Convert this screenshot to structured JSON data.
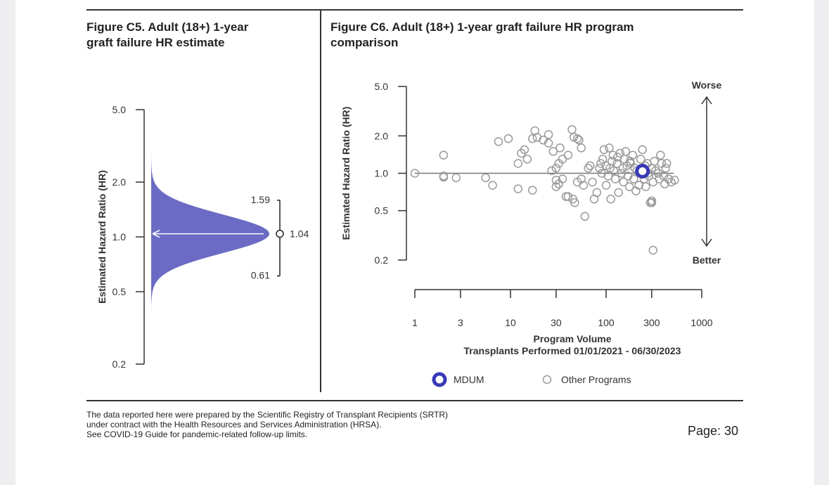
{
  "figure_c5": {
    "title_line1": "Figure C5. Adult (18+) 1-year",
    "title_line2": "graft failure HR estimate"
  },
  "figure_c6": {
    "title_line1": "Figure C6. Adult (18+) 1-year graft failure HR program",
    "title_line2": "comparison"
  },
  "footer": {
    "line1": "The data reported here were prepared by the Scientific Registry of Transplant Recipients (SRTR)",
    "line2": "under contract with the Health Resources and Services Administration (HRSA).",
    "line3": "See COVID-19 Guide for pandemic-related follow-up limits.",
    "page": "Page: 30"
  },
  "colors": {
    "accent": "#6b6bc5",
    "mdum": "#3838b8",
    "other": "#9a9a9a",
    "axis": "#333333"
  },
  "chart_data": [
    {
      "type": "area",
      "title": "Figure C5. Adult (18+) 1-year graft failure HR estimate",
      "ylabel": "Estimated Hazard Ratio (HR)",
      "yscale": "log",
      "ylim": [
        0.2,
        5.0
      ],
      "yticks": [
        5.0,
        2.0,
        1.0,
        0.5,
        0.2
      ],
      "ytick_labels": [
        "5.0",
        "2.0",
        "1.0",
        "0.5",
        "0.2"
      ],
      "estimate": 1.04,
      "ci_lower": 0.61,
      "ci_upper": 1.59,
      "estimate_label": "1.04",
      "ci_lower_label": "0.61",
      "ci_upper_label": "1.59",
      "reference_line": 1.0
    },
    {
      "type": "scatter",
      "title": "Figure C6. Adult (18+) 1-year graft failure HR program comparison",
      "ylabel": "Estimated Hazard Ratio (HR)",
      "xlabel_line1": "Program Volume",
      "xlabel_line2": "Transplants Performed 01/01/2021 - 06/30/2023",
      "xscale": "log",
      "yscale": "log",
      "xlim": [
        1,
        1000
      ],
      "ylim": [
        0.2,
        5.0
      ],
      "xticks": [
        1,
        3,
        10,
        30,
        100,
        300,
        1000
      ],
      "xtick_labels": [
        "1",
        "3",
        "10",
        "30",
        "100",
        "300",
        "1000"
      ],
      "yticks": [
        5.0,
        2.0,
        1.0,
        0.5,
        0.2
      ],
      "ytick_labels": [
        "5.0",
        "2.0",
        "1.0",
        "0.5",
        "0.2"
      ],
      "reference_line": 1.0,
      "worse_label": "Worse",
      "better_label": "Better",
      "legend": [
        {
          "name": "MDUM",
          "style": "filled-ring"
        },
        {
          "name": "Other Programs",
          "style": "open-circle"
        }
      ],
      "mdum_point": {
        "x": 240,
        "y": 1.04
      },
      "other_programs": [
        [
          1,
          1.0
        ],
        [
          2,
          1.4
        ],
        [
          2,
          0.95
        ],
        [
          2,
          0.93
        ],
        [
          2.7,
          0.92
        ],
        [
          5.5,
          0.92
        ],
        [
          6.5,
          0.8
        ],
        [
          7.5,
          1.8
        ],
        [
          9.5,
          1.9
        ],
        [
          12,
          1.2
        ],
        [
          13,
          1.45
        ],
        [
          14,
          1.55
        ],
        [
          15,
          1.3
        ],
        [
          18,
          2.2
        ],
        [
          17,
          1.9
        ],
        [
          19,
          1.95
        ],
        [
          22,
          1.85
        ],
        [
          25,
          2.05
        ],
        [
          25,
          1.75
        ],
        [
          28,
          1.5
        ],
        [
          33,
          1.6
        ],
        [
          30,
          1.1
        ],
        [
          32,
          1.2
        ],
        [
          35,
          1.3
        ],
        [
          40,
          1.4
        ],
        [
          44,
          2.25
        ],
        [
          46,
          1.95
        ],
        [
          50,
          1.9
        ],
        [
          52,
          1.85
        ],
        [
          55,
          1.6
        ],
        [
          12,
          0.75
        ],
        [
          17,
          0.73
        ],
        [
          27,
          1.05
        ],
        [
          30,
          0.88
        ],
        [
          30,
          0.78
        ],
        [
          32,
          0.82
        ],
        [
          35,
          0.9
        ],
        [
          38,
          0.65
        ],
        [
          40,
          0.65
        ],
        [
          45,
          0.62
        ],
        [
          47,
          0.58
        ],
        [
          50,
          0.85
        ],
        [
          55,
          0.9
        ],
        [
          58,
          0.8
        ],
        [
          60,
          0.45
        ],
        [
          65,
          1.1
        ],
        [
          68,
          1.15
        ],
        [
          72,
          0.85
        ],
        [
          75,
          0.62
        ],
        [
          80,
          0.7
        ],
        [
          85,
          1.1
        ],
        [
          88,
          1.2
        ],
        [
          90,
          1.0
        ],
        [
          92,
          1.3
        ],
        [
          95,
          1.55
        ],
        [
          100,
          1.15
        ],
        [
          100,
          0.8
        ],
        [
          105,
          0.95
        ],
        [
          108,
          1.6
        ],
        [
          110,
          1.1
        ],
        [
          112,
          0.62
        ],
        [
          115,
          1.25
        ],
        [
          118,
          1.4
        ],
        [
          120,
          1.05
        ],
        [
          125,
          0.9
        ],
        [
          130,
          1.2
        ],
        [
          132,
          1.35
        ],
        [
          135,
          0.7
        ],
        [
          140,
          1.45
        ],
        [
          145,
          1.0
        ],
        [
          150,
          1.1
        ],
        [
          152,
          0.85
        ],
        [
          155,
          1.3
        ],
        [
          160,
          1.5
        ],
        [
          165,
          1.15
        ],
        [
          170,
          0.95
        ],
        [
          175,
          0.78
        ],
        [
          178,
          1.25
        ],
        [
          180,
          1.2
        ],
        [
          190,
          1.4
        ],
        [
          195,
          0.9
        ],
        [
          200,
          1.1
        ],
        [
          205,
          0.72
        ],
        [
          210,
          1.05
        ],
        [
          220,
          0.8
        ],
        [
          230,
          1.3
        ],
        [
          240,
          1.55
        ],
        [
          250,
          0.9
        ],
        [
          255,
          1.15
        ],
        [
          260,
          0.78
        ],
        [
          270,
          1.2
        ],
        [
          275,
          1.0
        ],
        [
          280,
          0.95
        ],
        [
          290,
          0.58
        ],
        [
          300,
          1.1
        ],
        [
          310,
          0.85
        ],
        [
          320,
          1.25
        ],
        [
          330,
          1.05
        ],
        [
          300,
          0.6
        ],
        [
          300,
          0.58
        ],
        [
          350,
          1.0
        ],
        [
          360,
          0.9
        ],
        [
          370,
          1.4
        ],
        [
          380,
          1.2
        ],
        [
          400,
          0.95
        ],
        [
          410,
          0.82
        ],
        [
          420,
          1.1
        ],
        [
          430,
          1.2
        ],
        [
          450,
          0.9
        ],
        [
          480,
          0.85
        ],
        [
          520,
          0.88
        ],
        [
          310,
          0.24
        ]
      ]
    }
  ]
}
